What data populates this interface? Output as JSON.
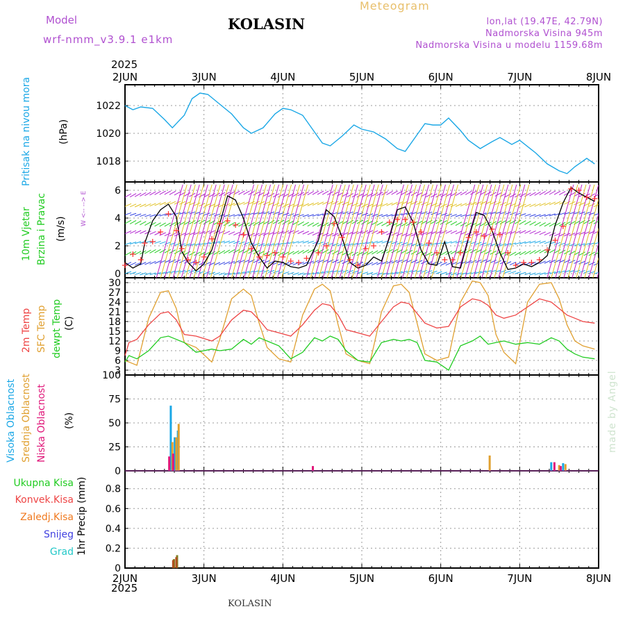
{
  "header": {
    "model_label": "Model",
    "model_name": "wrf-nmm_v3.9.1 e1km",
    "station": "KOLASIN",
    "chart_title": "Meteogram",
    "coords": "lon,lat (19.47E, 42.79N)",
    "elevation": "Nadmorska Visina 945m",
    "model_elevation": "Nadmorska Visina u modelu 1159.68m"
  },
  "footer": {
    "station": "KOLASIN",
    "credit": "made by Angel"
  },
  "colors": {
    "pressure": "#1aa7e6",
    "wind_speed": "#000000",
    "gust": "#ff3030",
    "t2m": "#ee4444",
    "tsfc": "#e0a030",
    "dewpt": "#22cc22",
    "cloud_high": "#1aa7e6",
    "cloud_mid": "#e0a030",
    "cloud_low": "#e0187a",
    "precip_total": "#22cc22",
    "precip_conv": "#ee4444",
    "precip_frz": "#f07a20",
    "precip_snow": "#4040e0",
    "precip_graupel": "#22c8c8",
    "header_purple": "#b050d0"
  },
  "chart_data": [
    {
      "type": "line",
      "panel": "pressure",
      "ylabel_1": "Pritisak na nivou mora",
      "ylabel_unit": "(hPa)",
      "y_ticks": [
        "1018",
        "1020",
        "1022"
      ],
      "ylim": [
        1016.5,
        1023.5
      ],
      "x_ticks_top": [
        "2JUN",
        "3JUN",
        "4JUN",
        "5JUN",
        "6JUN",
        "7JUN",
        "8JUN"
      ],
      "x_top_year": "2025",
      "x": [
        0,
        0.1,
        0.2,
        0.35,
        0.5,
        0.6,
        0.75,
        0.85,
        0.95,
        1.05,
        1.2,
        1.35,
        1.5,
        1.6,
        1.75,
        1.9,
        2.0,
        2.1,
        2.25,
        2.4,
        2.5,
        2.6,
        2.75,
        2.9,
        3.0,
        3.15,
        3.3,
        3.45,
        3.55,
        3.7,
        3.8,
        3.9,
        4.0,
        4.1,
        4.25,
        4.35,
        4.5,
        4.65,
        4.75,
        4.9,
        5.0,
        5.2,
        5.35,
        5.5,
        5.6,
        5.7,
        5.85,
        5.95
      ],
      "values": [
        1022.0,
        1021.7,
        1021.9,
        1021.8,
        1021.0,
        1020.4,
        1021.3,
        1022.5,
        1022.9,
        1022.8,
        1022.1,
        1021.4,
        1020.4,
        1020.0,
        1020.4,
        1021.4,
        1021.8,
        1021.7,
        1021.3,
        1020.1,
        1019.3,
        1019.1,
        1019.8,
        1020.6,
        1020.3,
        1020.1,
        1019.6,
        1018.9,
        1018.7,
        1019.9,
        1020.7,
        1020.6,
        1020.6,
        1021.1,
        1020.2,
        1019.5,
        1018.9,
        1019.4,
        1019.7,
        1019.2,
        1019.5,
        1018.6,
        1017.8,
        1017.3,
        1017.1,
        1017.6,
        1018.2,
        1017.8
      ]
    },
    {
      "type": "line",
      "panel": "wind",
      "ylabel_1": "10m Vjetar",
      "ylabel_2": "Brzina i Pravac",
      "ylabel_unit": "(m/s)",
      "compass": "W <-- --> E",
      "y_ticks": [
        "0",
        "2",
        "4",
        "6"
      ],
      "ylim": [
        -0.3,
        6.6
      ],
      "x": [
        0,
        0.1,
        0.2,
        0.25,
        0.35,
        0.45,
        0.55,
        0.65,
        0.72,
        0.8,
        0.9,
        1.0,
        1.1,
        1.2,
        1.3,
        1.4,
        1.5,
        1.6,
        1.7,
        1.8,
        1.9,
        2.0,
        2.1,
        2.2,
        2.3,
        2.45,
        2.55,
        2.65,
        2.75,
        2.85,
        2.95,
        3.05,
        3.15,
        3.25,
        3.35,
        3.45,
        3.55,
        3.65,
        3.75,
        3.85,
        3.95,
        4.05,
        4.15,
        4.25,
        4.35,
        4.45,
        4.55,
        4.65,
        4.75,
        4.85,
        4.95,
        5.05,
        5.15,
        5.25,
        5.35,
        5.45,
        5.55,
        5.65,
        5.75,
        5.85,
        5.95
      ],
      "wind_speed": [
        0.8,
        0.4,
        0.7,
        2.2,
        3.8,
        4.6,
        5.0,
        4.1,
        1.6,
        0.8,
        0.2,
        0.7,
        1.7,
        3.6,
        5.6,
        5.3,
        4.0,
        2.2,
        1.2,
        0.4,
        0.9,
        0.8,
        0.5,
        0.4,
        0.6,
        2.4,
        4.6,
        4.1,
        2.6,
        0.8,
        0.4,
        0.6,
        1.2,
        0.9,
        2.6,
        4.6,
        4.8,
        3.7,
        1.7,
        0.7,
        0.6,
        2.3,
        0.5,
        0.4,
        2.5,
        4.4,
        4.2,
        3.1,
        1.5,
        0.3,
        0.4,
        0.7,
        0.5,
        0.8,
        1.3,
        3.5,
        5.1,
        6.2,
        5.8,
        5.5,
        5.2
      ],
      "gust": [
        0.6,
        1.4,
        1.0,
        2.2,
        2.3,
        3.0,
        4.3,
        3.1,
        1.8,
        1.0,
        0.8,
        1.2,
        2.5,
        3.6,
        3.8,
        3.5,
        2.8,
        1.8,
        1.2,
        1.3,
        1.5,
        1.2,
        0.9,
        0.8,
        1.1,
        1.5,
        2.0,
        3.6,
        2.6,
        1.0,
        0.6,
        1.8,
        2.0,
        3.0,
        3.7,
        3.9,
        3.9,
        3.7,
        3.0,
        2.2,
        1.5,
        1.0,
        1.0,
        1.5,
        2.6,
        3.0,
        2.7,
        3.2,
        2.8,
        1.5,
        0.6,
        0.8,
        0.8,
        1.0,
        1.7,
        2.4,
        3.4,
        6.1,
        6.0,
        5.5,
        5.4
      ]
    },
    {
      "type": "line",
      "panel": "temperature",
      "ylabel_1": "2m Temp",
      "ylabel_2": "SFC Temp",
      "ylabel_3": "dewpt Temp",
      "ylabel_unit": "(C)",
      "y_ticks": [
        "3",
        "6",
        "9",
        "12",
        "15",
        "18",
        "21",
        "24",
        "27",
        "30"
      ],
      "ylim": [
        1.5,
        31.5
      ],
      "x": [
        0,
        0.05,
        0.15,
        0.3,
        0.45,
        0.55,
        0.65,
        0.75,
        0.9,
        1.1,
        1.2,
        1.35,
        1.5,
        1.6,
        1.7,
        1.8,
        1.95,
        2.1,
        2.25,
        2.4,
        2.5,
        2.6,
        2.7,
        2.8,
        2.95,
        3.1,
        3.25,
        3.4,
        3.5,
        3.6,
        3.7,
        3.8,
        3.95,
        4.1,
        4.25,
        4.4,
        4.5,
        4.6,
        4.7,
        4.8,
        4.95,
        5.1,
        5.25,
        5.4,
        5.5,
        5.6,
        5.7,
        5.8,
        5.95
      ],
      "t2m": [
        7.5,
        11.5,
        12.5,
        17.0,
        20.5,
        21.0,
        18.5,
        14.0,
        13.5,
        12.0,
        13.5,
        18.5,
        21.5,
        21.0,
        18.5,
        15.5,
        14.5,
        13.5,
        17.0,
        21.5,
        23.5,
        23.0,
        20.0,
        15.5,
        14.5,
        13.5,
        18.0,
        22.5,
        24.0,
        23.5,
        20.5,
        17.5,
        16.0,
        16.5,
        22.5,
        25.0,
        24.5,
        23.0,
        20.0,
        19.0,
        20.0,
        22.5,
        25.0,
        24.0,
        22.0,
        20.0,
        19.0,
        18.0,
        17.5
      ],
      "tsfc": [
        6.0,
        5.5,
        4.5,
        19.0,
        27.0,
        27.5,
        22.0,
        11.5,
        10.0,
        5.5,
        12.5,
        25.0,
        28.0,
        26.0,
        17.5,
        10.0,
        6.5,
        5.5,
        20.0,
        28.0,
        29.5,
        27.5,
        17.0,
        8.0,
        6.0,
        5.0,
        21.0,
        29.0,
        29.5,
        27.0,
        17.5,
        8.0,
        6.0,
        7.0,
        24.0,
        30.5,
        30.0,
        26.0,
        14.0,
        8.5,
        5.0,
        24.0,
        29.5,
        30.0,
        25.0,
        17.0,
        12.0,
        10.5,
        9.5
      ],
      "dewpt": [
        5.5,
        7.5,
        6.5,
        9.0,
        13.0,
        13.5,
        12.5,
        11.5,
        8.5,
        9.5,
        9.0,
        9.5,
        12.5,
        11.0,
        13.0,
        12.0,
        10.5,
        6.5,
        8.5,
        13.0,
        12.0,
        13.5,
        12.5,
        9.0,
        6.0,
        5.5,
        11.5,
        12.5,
        12.0,
        12.5,
        11.5,
        6.0,
        5.5,
        3.0,
        10.5,
        12.0,
        13.5,
        11.0,
        11.5,
        12.0,
        11.0,
        11.5,
        11.0,
        13.0,
        12.0,
        9.5,
        8.0,
        7.0,
        6.5
      ]
    },
    {
      "type": "bar",
      "panel": "clouds",
      "ylabel_1": "Visoka Oblacnost",
      "ylabel_2": "Srednja Oblacnost",
      "ylabel_3": "Niska Oblacnost",
      "ylabel_unit": "(%)",
      "y_ticks": [
        "0",
        "25",
        "50",
        "75",
        "100"
      ],
      "ylim": [
        0,
        100
      ],
      "series": [
        {
          "name": "Visoka Oblacnost",
          "x": [
            0.58,
            0.63,
            0.67,
            5.4,
            5.55
          ],
          "values": [
            68,
            35,
            42,
            9,
            8
          ]
        },
        {
          "name": "Srednja Oblacnost",
          "x": [
            0.6,
            0.65,
            0.68,
            4.62,
            5.5,
            5.58
          ],
          "values": [
            30,
            35,
            49,
            16,
            6,
            7
          ]
        },
        {
          "name": "Niska Oblacnost",
          "x": [
            0.56,
            0.61,
            2.38,
            5.44,
            5.52
          ],
          "values": [
            15,
            18,
            5,
            9,
            5
          ]
        }
      ]
    },
    {
      "type": "bar",
      "panel": "precip",
      "ylabel_1": "1hr Precip (mm)",
      "legend": [
        "Ukupna Kisa",
        "Konvek.Kisa",
        "Zaledj.Kisa",
        "Snijeg",
        "Grad"
      ],
      "y_ticks": [
        "0",
        "0.2",
        "0.4",
        "0.6",
        "0.8"
      ],
      "ylim": [
        0,
        0.98
      ],
      "series": [
        {
          "name": "Ukupna Kisa",
          "x": [
            0.62,
            0.66
          ],
          "values": [
            0.09,
            0.13
          ]
        },
        {
          "name": "Konvek.Kisa",
          "x": [
            0.61,
            0.65
          ],
          "values": [
            0.08,
            0.11
          ]
        }
      ],
      "x_ticks_bottom": [
        "2JUN",
        "3JUN",
        "4JUN",
        "5JUN",
        "6JUN",
        "7JUN",
        "8JUN"
      ],
      "x_bottom_year": "2025"
    }
  ]
}
